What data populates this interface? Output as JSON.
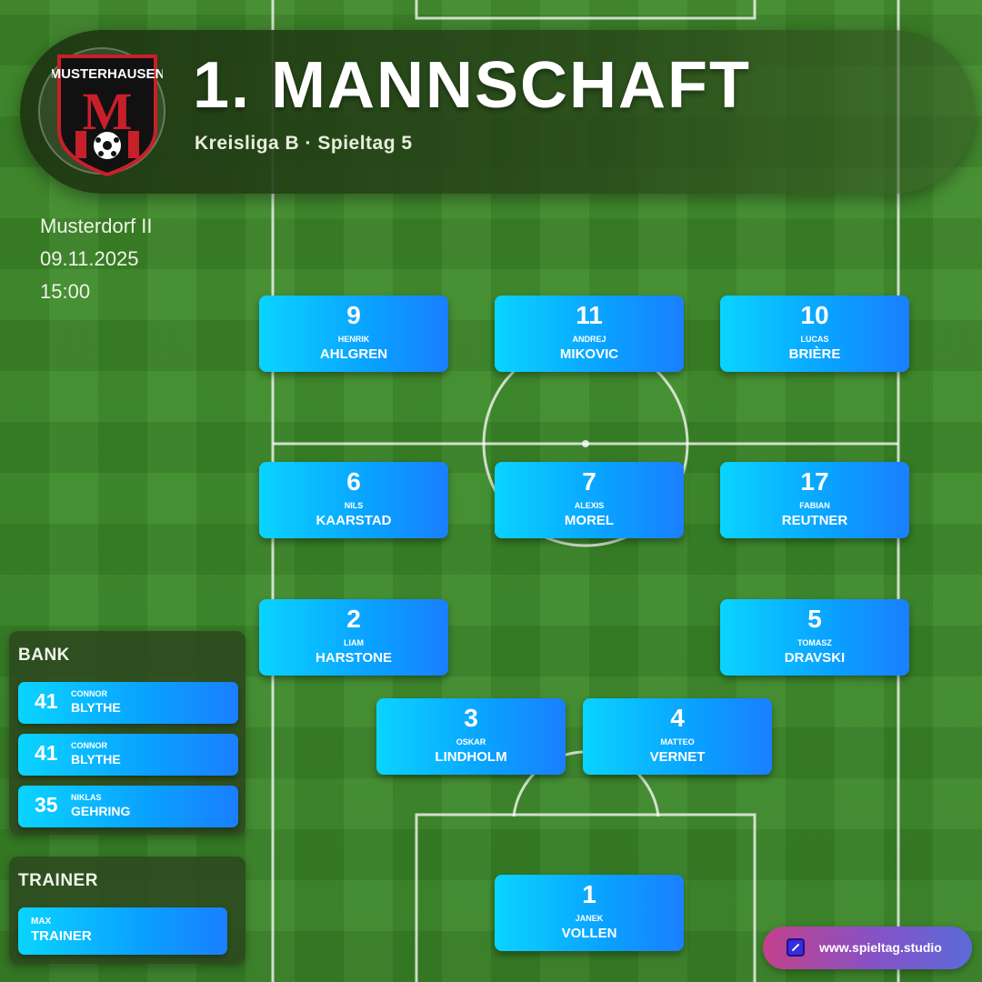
{
  "header": {
    "club_name": "MUSTERHAUSEN",
    "crest_letter": "M",
    "title": "1. MANNSCHAFT",
    "subtitle": "Kreisliga B · Spieltag 5"
  },
  "match": {
    "opponent": "Musterdorf II",
    "date": "09.11.2025",
    "time": "15:00"
  },
  "lineup": [
    {
      "number": "9",
      "first": "HENRIK",
      "last": "AHLGREN"
    },
    {
      "number": "11",
      "first": "ANDREJ",
      "last": "MIKOVIC"
    },
    {
      "number": "10",
      "first": "LUCAS",
      "last": "BRIÈRE"
    },
    {
      "number": "6",
      "first": "NILS",
      "last": "KAARSTAD"
    },
    {
      "number": "7",
      "first": "ALEXIS",
      "last": "MOREL"
    },
    {
      "number": "17",
      "first": "FABIAN",
      "last": "REUTNER"
    },
    {
      "number": "2",
      "first": "LIAM",
      "last": "HARSTONE"
    },
    {
      "number": "5",
      "first": "TOMASZ",
      "last": "DRAVSKI"
    },
    {
      "number": "3",
      "first": "OSKAR",
      "last": "LINDHOLM"
    },
    {
      "number": "4",
      "first": "MATTEO",
      "last": "VERNET"
    },
    {
      "number": "1",
      "first": "JANEK",
      "last": "VOLLEN"
    }
  ],
  "bench": {
    "title": "BANK",
    "players": [
      {
        "number": "41",
        "first": "CONNOR",
        "last": "BLYTHE"
      },
      {
        "number": "41",
        "first": "CONNOR",
        "last": "BLYTHE"
      },
      {
        "number": "35",
        "first": "NIKLAS",
        "last": "GEHRING"
      }
    ]
  },
  "trainer": {
    "title": "TRAINER",
    "first": "MAX",
    "last": "TRAINER"
  },
  "footer": {
    "badge_text": "www.spieltag.studio",
    "badge_icon": "edit-square-icon"
  },
  "colors": {
    "pitch": "#3c8a29",
    "card_start": "#0ad4ff",
    "card_end": "#1a7fff",
    "crest_red": "#c8202a"
  }
}
